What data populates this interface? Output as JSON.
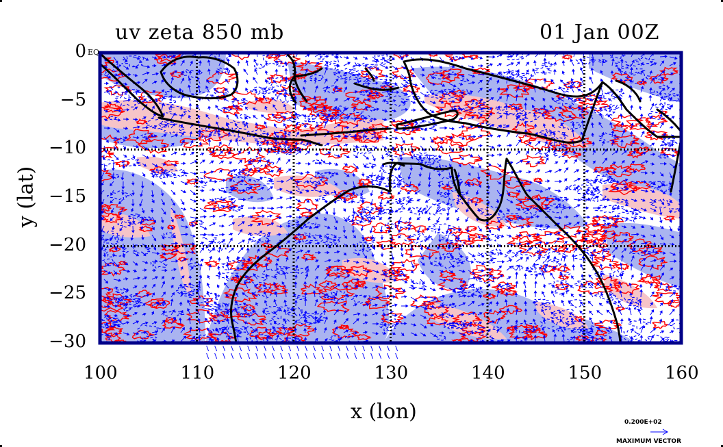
{
  "header": {
    "title_left": "uv zeta 850 mb",
    "title_right": "01 Jan 00Z"
  },
  "axes": {
    "xlabel": "x (lon)",
    "ylabel": "y (lat)",
    "xticks": [
      "100",
      "110",
      "120",
      "130",
      "140",
      "150",
      "160"
    ],
    "yticks": [
      "0",
      "−5",
      "−10",
      "−15",
      "−20",
      "−25",
      "−30"
    ],
    "eq_label": "EQ"
  },
  "legend": {
    "max_vector_value": "0.200E+02",
    "max_vector_label": "MAXIMUM VECTOR"
  },
  "map": {
    "lon_range": [
      100,
      160
    ],
    "lat_range": [
      -30,
      0
    ],
    "grid_lon": [
      110,
      120,
      130,
      140,
      150
    ],
    "grid_lat": [
      -10,
      -20
    ],
    "colors": {
      "negative_fill": "#aab4f0",
      "positive_fill": "#f6c4c8",
      "positive_contour": "#ff0000",
      "wind_vector": "#0000ff",
      "coastline": "#000000",
      "frame": "#000088"
    }
  }
}
